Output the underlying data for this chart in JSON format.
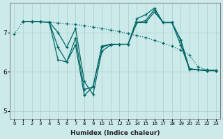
{
  "xlabel": "Humidex (Indice chaleur)",
  "background_color": "#cceaea",
  "grid_color": "#aacccc",
  "line_color": "#006666",
  "xlim": [
    -0.5,
    23.5
  ],
  "ylim": [
    4.8,
    7.75
  ],
  "yticks": [
    5,
    6,
    7
  ],
  "xticks": [
    0,
    1,
    2,
    3,
    4,
    5,
    6,
    7,
    8,
    9,
    10,
    11,
    12,
    13,
    14,
    15,
    16,
    17,
    18,
    19,
    20,
    21,
    22,
    23
  ],
  "lines": [
    {
      "x": [
        0,
        1,
        2,
        3,
        4,
        5,
        6,
        7,
        8,
        9,
        10,
        11,
        12,
        13,
        14,
        15,
        16,
        17,
        18,
        19,
        20,
        21,
        22,
        23
      ],
      "y": [
        6.95,
        7.28,
        7.28,
        7.27,
        7.26,
        7.24,
        7.22,
        7.2,
        7.17,
        7.14,
        7.1,
        7.06,
        7.02,
        6.97,
        6.92,
        6.87,
        6.8,
        6.73,
        6.65,
        6.55,
        6.42,
        6.12,
        6.05,
        6.04
      ],
      "style": "dotted",
      "lw": 0.9
    },
    {
      "x": [
        1,
        2,
        3,
        4,
        5,
        6,
        7,
        8,
        9,
        10,
        11,
        12,
        13,
        14,
        15,
        16,
        17,
        18,
        19,
        20,
        21,
        22,
        23
      ],
      "y": [
        7.28,
        7.28,
        7.27,
        7.26,
        7.0,
        6.62,
        7.1,
        5.75,
        5.42,
        6.52,
        6.68,
        6.7,
        6.7,
        7.25,
        7.3,
        7.58,
        7.25,
        7.25,
        6.8,
        6.05,
        6.05,
        6.03,
        6.03
      ],
      "style": "solid",
      "lw": 0.9
    },
    {
      "x": [
        1,
        2,
        3,
        4,
        5,
        6,
        7,
        8,
        9,
        10,
        11,
        12,
        13,
        14,
        15,
        16,
        17,
        18,
        19,
        20,
        21,
        22,
        23
      ],
      "y": [
        7.28,
        7.28,
        7.27,
        7.26,
        6.62,
        6.25,
        6.85,
        5.55,
        5.62,
        6.62,
        6.7,
        6.7,
        6.7,
        7.25,
        7.25,
        7.52,
        7.25,
        7.25,
        6.68,
        6.07,
        6.05,
        6.03,
        6.03
      ],
      "style": "solid",
      "lw": 0.9
    },
    {
      "x": [
        1,
        2,
        3,
        4,
        5,
        6,
        7,
        8,
        9,
        10,
        11,
        12,
        13,
        14,
        15,
        16,
        17,
        18,
        19,
        20,
        21,
        22,
        23
      ],
      "y": [
        7.28,
        7.28,
        7.27,
        7.26,
        6.3,
        6.25,
        6.68,
        5.4,
        5.62,
        6.65,
        6.7,
        6.7,
        6.7,
        7.35,
        7.45,
        7.62,
        7.25,
        7.25,
        6.82,
        6.08,
        6.05,
        6.03,
        6.03
      ],
      "style": "solid",
      "lw": 0.9
    }
  ]
}
